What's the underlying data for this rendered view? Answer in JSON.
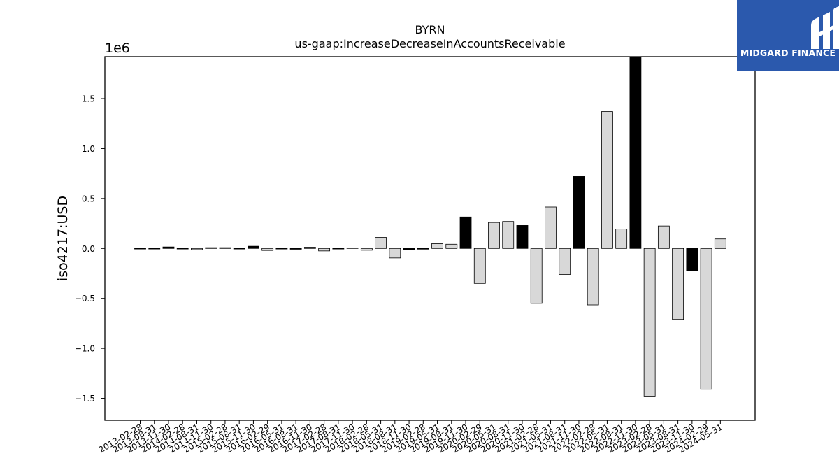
{
  "logo": {
    "text": "MIDGARD FINANCE",
    "background": "#2b59ad",
    "icon": "midgard-logo-icon"
  },
  "chart_data": {
    "type": "bar",
    "title": "BYRN",
    "subtitle": "us-gaap:IncreaseDecreaseInAccountsReceivable",
    "ylabel": "iso4217:USD",
    "xlabel": "",
    "offset_text": "1e6",
    "ylim": [
      -1.72,
      1.92
    ],
    "yticks": [
      -1.5,
      -1.0,
      -0.5,
      0.0,
      0.5,
      1.0,
      1.5
    ],
    "ytick_labels": [
      "−1.5",
      "−1.0",
      "−0.5",
      "0.0",
      "0.5",
      "1.0",
      "1.5"
    ],
    "grid": false,
    "colors": {
      "light": "#d8d8d8",
      "dark": "#000000",
      "edge": "#000000"
    },
    "categories": [
      "2013-02-28",
      "2013-08-31",
      "2013-11-30",
      "2014-02-28",
      "2014-08-31",
      "2014-11-30",
      "2015-02-28",
      "2015-08-31",
      "2015-11-30",
      "2016-02-29",
      "2016-05-31",
      "2016-08-31",
      "2016-11-30",
      "2017-02-28",
      "2017-08-31",
      "2017-11-30",
      "2018-02-28",
      "2018-05-31",
      "2018-08-31",
      "2018-11-30",
      "2019-02-28",
      "2019-05-31",
      "2019-08-31",
      "2019-11-30",
      "2020-02-29",
      "2020-05-31",
      "2020-08-31",
      "2020-11-30",
      "2021-02-28",
      "2021-05-31",
      "2021-08-31",
      "2021-11-30",
      "2022-02-28",
      "2022-05-31",
      "2022-08-31",
      "2022-11-30",
      "2023-02-28",
      "2023-05-31",
      "2023-08-31",
      "2023-11-30",
      "2024-02-29",
      "2024-05-31"
    ],
    "values": [
      -0.003,
      -0.004,
      0.015,
      -0.005,
      -0.012,
      0.008,
      0.008,
      -0.004,
      0.022,
      -0.02,
      -0.003,
      -0.008,
      0.012,
      -0.025,
      -0.003,
      0.006,
      -0.018,
      0.11,
      -0.095,
      -0.01,
      -0.007,
      0.048,
      0.042,
      0.315,
      -0.35,
      0.26,
      0.27,
      0.23,
      -0.55,
      0.415,
      -0.26,
      0.72,
      -0.565,
      1.37,
      0.195,
      1.92,
      -1.485,
      0.225,
      -0.71,
      -0.225,
      -1.41,
      0.095
    ],
    "dark": [
      false,
      false,
      true,
      false,
      false,
      true,
      true,
      false,
      true,
      false,
      false,
      true,
      true,
      false,
      false,
      true,
      false,
      false,
      false,
      true,
      true,
      false,
      false,
      true,
      false,
      false,
      false,
      true,
      false,
      false,
      false,
      true,
      false,
      false,
      false,
      true,
      false,
      false,
      false,
      true,
      false,
      false
    ]
  }
}
